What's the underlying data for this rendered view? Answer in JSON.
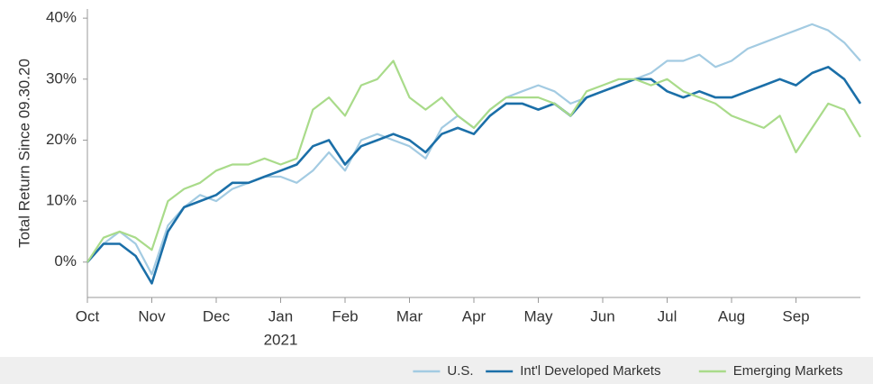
{
  "chart_data": {
    "type": "line",
    "ylabel": "Total Return Since 09.30.20",
    "categories": [
      "Oct",
      null,
      null,
      null,
      "Nov",
      null,
      null,
      null,
      "Dec",
      null,
      null,
      null,
      "Jan",
      null,
      null,
      null,
      "Feb",
      null,
      null,
      null,
      "Mar",
      null,
      null,
      null,
      "Apr",
      null,
      null,
      null,
      "May",
      null,
      null,
      null,
      "Jun",
      null,
      null,
      null,
      "Jul",
      null,
      null,
      null,
      "Aug",
      null,
      null,
      null,
      "Sep",
      null,
      null,
      null,
      null
    ],
    "year_label": "2021",
    "series": [
      {
        "name": "U.S.",
        "color": "#a3cbe2",
        "values": [
          0,
          3,
          5,
          3,
          -2,
          6,
          9,
          11,
          10,
          12,
          13,
          14,
          14,
          13,
          15,
          18,
          15,
          20,
          21,
          20,
          19,
          17,
          22,
          24,
          22,
          25,
          27,
          28,
          29,
          28,
          26,
          27,
          28,
          29,
          30,
          31,
          33,
          33,
          34,
          32,
          33,
          35,
          36,
          37,
          38,
          39,
          38,
          36,
          33
        ]
      },
      {
        "name": "Int'l Developed Markets",
        "color": "#1b6fa8",
        "values": [
          0,
          3,
          3,
          1,
          -3.5,
          5,
          9,
          10,
          11,
          13,
          13,
          14,
          15,
          16,
          19,
          20,
          16,
          19,
          20,
          21,
          20,
          18,
          21,
          22,
          21,
          24,
          26,
          26,
          25,
          26,
          24,
          27,
          28,
          29,
          30,
          30,
          28,
          27,
          28,
          27,
          27,
          28,
          29,
          30,
          29,
          31,
          32,
          30,
          26
        ]
      },
      {
        "name": "Emerging Markets",
        "color": "#a9db8a",
        "values": [
          0,
          4,
          5,
          4,
          2,
          10,
          12,
          13,
          15,
          16,
          16,
          17,
          16,
          17,
          25,
          27,
          24,
          29,
          30,
          33,
          27,
          25,
          27,
          24,
          22,
          25,
          27,
          27,
          27,
          26,
          24,
          28,
          29,
          30,
          30,
          29,
          30,
          28,
          27,
          26,
          24,
          23,
          22,
          24,
          18,
          22,
          26,
          25,
          20.5
        ]
      }
    ],
    "ylim": [
      -5.8,
      41.5
    ],
    "yticks": [
      {
        "value": 0,
        "label": "0%"
      },
      {
        "value": 10,
        "label": "10%"
      },
      {
        "value": 20,
        "label": "20%"
      },
      {
        "value": 30,
        "label": "30%"
      },
      {
        "value": 40,
        "label": "40%"
      }
    ],
    "grid": false,
    "legend": "bottom-right"
  }
}
